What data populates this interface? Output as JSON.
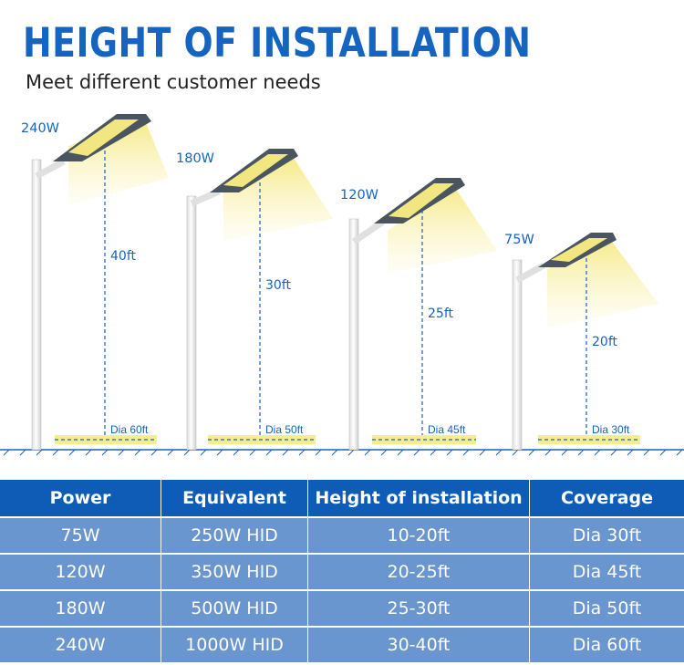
{
  "header": {
    "title": "HEIGHT OF INSTALLATION",
    "subtitle": "Meet different customer needs"
  },
  "colors": {
    "title_blue": "#1565c0",
    "header_blue": "#0f5cb7",
    "row_blue": "#6a96cf",
    "beam_yellow": "#f6ee8c"
  },
  "lights": [
    {
      "watt": "240W",
      "height": "40ft",
      "coverage": "Dia 60ft"
    },
    {
      "watt": "180W",
      "height": "30ft",
      "coverage": "Dia 50ft"
    },
    {
      "watt": "120W",
      "height": "25ft",
      "coverage": "Dia 45ft"
    },
    {
      "watt": "75W",
      "height": "20ft",
      "coverage": "Dia 30ft"
    }
  ],
  "table": {
    "headers": [
      "Power",
      "Equivalent",
      "Height of installation",
      "Coverage"
    ],
    "rows": [
      [
        "75W",
        "250W HID",
        "10-20ft",
        "Dia 30ft"
      ],
      [
        "120W",
        "350W HID",
        "20-25ft",
        "Dia 45ft"
      ],
      [
        "180W",
        "500W HID",
        "25-30ft",
        "Dia 50ft"
      ],
      [
        "240W",
        "1000W HID",
        "30-40ft",
        "Dia 60ft"
      ]
    ]
  }
}
